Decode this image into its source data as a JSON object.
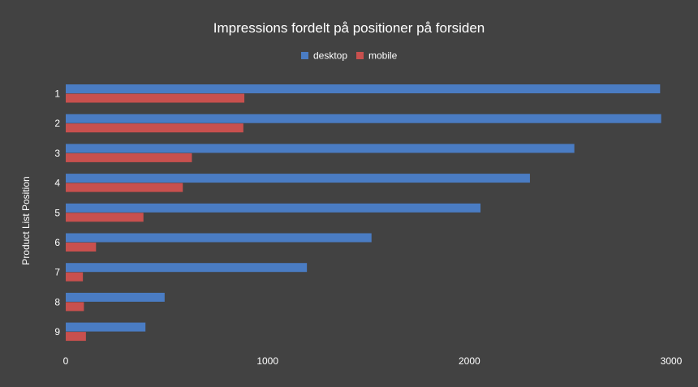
{
  "chart_data": {
    "type": "bar",
    "orientation": "horizontal",
    "title": "Impressions fordelt på positioner på forsiden",
    "ylabel": "Product List Position",
    "xlabel": "",
    "categories": [
      "1",
      "2",
      "3",
      "4",
      "5",
      "6",
      "7",
      "8",
      "9"
    ],
    "series": [
      {
        "name": "desktop",
        "color": "#4a7cc3",
        "values": [
          2945,
          2950,
          2520,
          2300,
          2055,
          1515,
          1195,
          490,
          395
        ]
      },
      {
        "name": "mobile",
        "color": "#c8504e",
        "values": [
          885,
          880,
          625,
          580,
          385,
          150,
          85,
          90,
          100
        ]
      }
    ],
    "xlim": [
      0,
      3000
    ],
    "xticks": [
      0,
      1000,
      2000,
      3000
    ],
    "legend_position": "top-center",
    "grid": false
  }
}
